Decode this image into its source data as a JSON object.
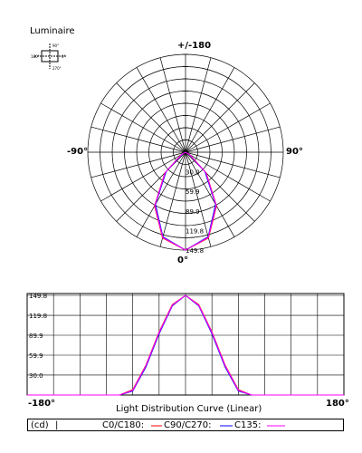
{
  "luminaire": {
    "title": "Luminaire",
    "icon_labels": [
      "90°",
      "180°",
      "0°",
      "270°"
    ]
  },
  "polar": {
    "label_top": "+/-180",
    "label_left": "-90°",
    "label_right": "90°",
    "label_bottom": "0°",
    "radial_tick_labels": [
      "30.0",
      "59.9",
      "89.9",
      "119.8",
      "149.8"
    ]
  },
  "linear": {
    "title": "Light Distribution Curve (Linear)",
    "x_left": "-180°",
    "x_right": "180°"
  },
  "legend": {
    "unit": "(cd)",
    "separator": "|",
    "c0": "C0/C180:",
    "c90": "C90/C270:",
    "c135": "C135:"
  },
  "colors": {
    "c0": "#ff0000",
    "c90": "#0000ff",
    "c135": "#ff00ff",
    "grid": "#000000"
  },
  "chart_data": [
    {
      "type": "line",
      "subtype": "polar",
      "radial_ticks": [
        30.0,
        59.9,
        89.9,
        119.8,
        149.8
      ],
      "rlim": [
        0,
        149.8
      ],
      "angle_labels": [
        "+/-180",
        "-90°",
        "90°",
        "0°"
      ],
      "grid": true,
      "series": [
        {
          "name": "C0/C180",
          "color": "#ff0000",
          "gamma": [
            -90,
            -75,
            -60,
            -45,
            -30,
            -15,
            0,
            15,
            30,
            45,
            60,
            75,
            90
          ],
          "values": [
            0,
            0,
            8,
            45,
            95,
            136,
            149.8,
            136,
            95,
            45,
            8,
            0,
            0
          ]
        },
        {
          "name": "C90/C270",
          "color": "#0000ff",
          "gamma": [
            -90,
            -75,
            -60,
            -45,
            -30,
            -15,
            0,
            15,
            30,
            45,
            60,
            75,
            90
          ],
          "values": [
            0,
            0,
            6,
            42,
            92,
            134,
            149.8,
            134,
            92,
            42,
            6,
            0,
            0
          ]
        },
        {
          "name": "C135",
          "color": "#ff00ff",
          "gamma": [
            -90,
            -75,
            -60,
            -45,
            -30,
            -15,
            0,
            15,
            30,
            45,
            60,
            75,
            90
          ],
          "values": [
            0,
            0,
            7,
            44,
            94,
            135,
            149.8,
            135,
            94,
            44,
            7,
            0,
            0
          ]
        }
      ]
    },
    {
      "type": "line",
      "title": "Light Distribution Curve (Linear)",
      "ylabel": "(cd)",
      "xlim": [
        -180,
        180
      ],
      "ylim": [
        0,
        149.8
      ],
      "yticks": [
        30.0,
        59.9,
        89.9,
        119.8,
        149.8
      ],
      "xtick_labels": [
        "-180°",
        "180°"
      ],
      "grid": true,
      "series": [
        {
          "name": "C0/C180",
          "color": "#ff0000",
          "x": [
            -180,
            -150,
            -120,
            -90,
            -75,
            -60,
            -45,
            -30,
            -15,
            0,
            15,
            30,
            45,
            60,
            75,
            90,
            120,
            150,
            180
          ],
          "values": [
            0,
            0,
            0,
            0,
            0,
            8,
            45,
            95,
            136,
            149.8,
            136,
            95,
            45,
            8,
            0,
            0,
            0,
            0,
            0
          ]
        },
        {
          "name": "C90/C270",
          "color": "#0000ff",
          "x": [
            -180,
            -150,
            -120,
            -90,
            -75,
            -60,
            -45,
            -30,
            -15,
            0,
            15,
            30,
            45,
            60,
            75,
            90,
            120,
            150,
            180
          ],
          "values": [
            0,
            0,
            0,
            0,
            0,
            6,
            42,
            92,
            134,
            149.8,
            134,
            92,
            42,
            6,
            0,
            0,
            0,
            0,
            0
          ]
        },
        {
          "name": "C135",
          "color": "#ff00ff",
          "x": [
            -180,
            -150,
            -120,
            -90,
            -75,
            -60,
            -45,
            -30,
            -15,
            0,
            15,
            30,
            45,
            60,
            75,
            90,
            120,
            150,
            180
          ],
          "values": [
            0,
            0,
            0,
            0,
            0,
            7,
            44,
            94,
            135,
            149.8,
            135,
            94,
            44,
            7,
            0,
            0,
            0,
            0,
            0
          ]
        }
      ]
    }
  ]
}
